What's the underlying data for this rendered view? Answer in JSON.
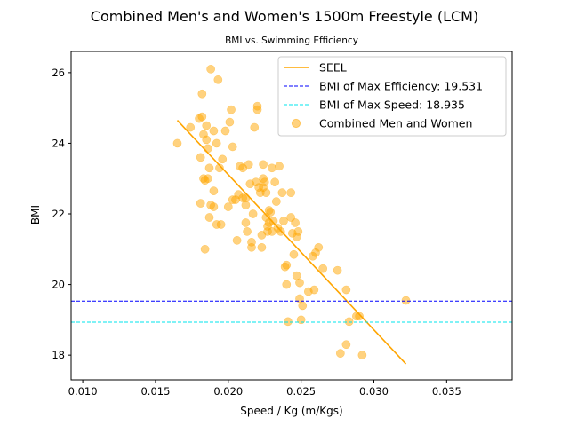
{
  "chart_data": {
    "type": "scatter",
    "title": "Combined Men's and Women's 1500m Freestyle (LCM)",
    "subtitle": "BMI vs. Swimming Efficiency",
    "xlabel": "Speed / Kg (m/Kgs)",
    "ylabel": "BMI",
    "xlim": [
      0.0092,
      0.0395
    ],
    "ylim": [
      17.3,
      26.6
    ],
    "xticks": [
      0.01,
      0.015,
      0.02,
      0.025,
      0.03,
      0.035
    ],
    "xtick_labels": [
      "0.010",
      "0.015",
      "0.020",
      "0.025",
      "0.030",
      "0.035"
    ],
    "yticks": [
      18,
      20,
      22,
      24,
      26
    ],
    "ytick_labels": [
      "18",
      "20",
      "22",
      "24",
      "26"
    ],
    "grid": false,
    "legend_position": "top-right",
    "series": [
      {
        "name": "SEEL",
        "kind": "line",
        "color": "#ffa500",
        "x": [
          0.0165,
          0.0322
        ],
        "y": [
          24.65,
          17.75
        ]
      },
      {
        "name": "BMI of Max Efficiency: 19.531",
        "kind": "hline",
        "color": "#0000ff",
        "dash": "dashed",
        "y": 19.531
      },
      {
        "name": "BMI of Max Speed: 18.935",
        "kind": "hline",
        "color": "#00e5ee",
        "dash": "dashed",
        "y": 18.935
      },
      {
        "name": "Combined Men and Women",
        "kind": "scatter",
        "color": "#ffa500",
        "opacity": 0.5,
        "points": [
          [
            0.0165,
            24.0
          ],
          [
            0.0174,
            24.45
          ],
          [
            0.018,
            24.7
          ],
          [
            0.0182,
            24.75
          ],
          [
            0.0182,
            25.4
          ],
          [
            0.0183,
            24.25
          ],
          [
            0.0183,
            23.0
          ],
          [
            0.0181,
            23.6
          ],
          [
            0.0185,
            24.1
          ],
          [
            0.0185,
            24.5
          ],
          [
            0.0186,
            23.85
          ],
          [
            0.0187,
            23.3
          ],
          [
            0.0188,
            26.1
          ],
          [
            0.019,
            24.35
          ],
          [
            0.0192,
            24.0
          ],
          [
            0.0193,
            25.8
          ],
          [
            0.0194,
            23.3
          ],
          [
            0.0196,
            23.55
          ],
          [
            0.0198,
            24.35
          ],
          [
            0.0201,
            24.6
          ],
          [
            0.0202,
            24.95
          ],
          [
            0.0203,
            23.9
          ],
          [
            0.0181,
            22.3
          ],
          [
            0.0184,
            22.95
          ],
          [
            0.0186,
            23.0
          ],
          [
            0.0188,
            22.25
          ],
          [
            0.019,
            22.65
          ],
          [
            0.019,
            22.2
          ],
          [
            0.0187,
            21.9
          ],
          [
            0.0192,
            21.7
          ],
          [
            0.0195,
            21.7
          ],
          [
            0.0184,
            21.0
          ],
          [
            0.02,
            22.2
          ],
          [
            0.0203,
            22.4
          ],
          [
            0.0205,
            22.4
          ],
          [
            0.0206,
            21.25
          ],
          [
            0.0207,
            22.55
          ],
          [
            0.0208,
            23.35
          ],
          [
            0.021,
            22.45
          ],
          [
            0.021,
            23.3
          ],
          [
            0.0212,
            22.45
          ],
          [
            0.0212,
            22.25
          ],
          [
            0.0212,
            21.75
          ],
          [
            0.0213,
            21.5
          ],
          [
            0.0214,
            23.4
          ],
          [
            0.0215,
            22.85
          ],
          [
            0.0216,
            21.2
          ],
          [
            0.0216,
            21.05
          ],
          [
            0.0217,
            22.0
          ],
          [
            0.0218,
            24.45
          ],
          [
            0.0219,
            22.9
          ],
          [
            0.022,
            25.05
          ],
          [
            0.022,
            24.95
          ],
          [
            0.0221,
            22.75
          ],
          [
            0.0222,
            22.6
          ],
          [
            0.0223,
            21.05
          ],
          [
            0.0223,
            21.4
          ],
          [
            0.0224,
            23.4
          ],
          [
            0.0224,
            23.0
          ],
          [
            0.0224,
            22.75
          ],
          [
            0.0225,
            22.9
          ],
          [
            0.0226,
            22.6
          ],
          [
            0.0226,
            21.9
          ],
          [
            0.0227,
            21.5
          ],
          [
            0.0227,
            21.65
          ],
          [
            0.0228,
            21.75
          ],
          [
            0.0228,
            22.1
          ],
          [
            0.0229,
            22.05
          ],
          [
            0.023,
            21.5
          ],
          [
            0.023,
            23.3
          ],
          [
            0.0231,
            21.8
          ],
          [
            0.0232,
            22.9
          ],
          [
            0.0233,
            22.35
          ],
          [
            0.0234,
            21.6
          ],
          [
            0.0235,
            23.35
          ],
          [
            0.0236,
            21.5
          ],
          [
            0.0237,
            22.6
          ],
          [
            0.0238,
            21.8
          ],
          [
            0.0239,
            20.5
          ],
          [
            0.024,
            20.55
          ],
          [
            0.024,
            20.0
          ],
          [
            0.0241,
            18.95
          ],
          [
            0.0243,
            22.6
          ],
          [
            0.0243,
            21.9
          ],
          [
            0.0244,
            21.45
          ],
          [
            0.0245,
            20.85
          ],
          [
            0.0246,
            21.75
          ],
          [
            0.0247,
            21.35
          ],
          [
            0.0247,
            20.25
          ],
          [
            0.0248,
            21.5
          ],
          [
            0.0249,
            20.05
          ],
          [
            0.0249,
            19.6
          ],
          [
            0.025,
            19.0
          ],
          [
            0.0251,
            19.4
          ],
          [
            0.0255,
            19.8
          ],
          [
            0.0258,
            20.8
          ],
          [
            0.0259,
            19.85
          ],
          [
            0.026,
            20.9
          ],
          [
            0.0262,
            21.05
          ],
          [
            0.0265,
            20.45
          ],
          [
            0.0275,
            20.4
          ],
          [
            0.0277,
            18.05
          ],
          [
            0.0281,
            19.85
          ],
          [
            0.0281,
            18.3
          ],
          [
            0.0283,
            18.95
          ],
          [
            0.0288,
            19.1
          ],
          [
            0.029,
            19.1
          ],
          [
            0.0292,
            18.0
          ],
          [
            0.0322,
            19.55
          ]
        ]
      }
    ]
  }
}
